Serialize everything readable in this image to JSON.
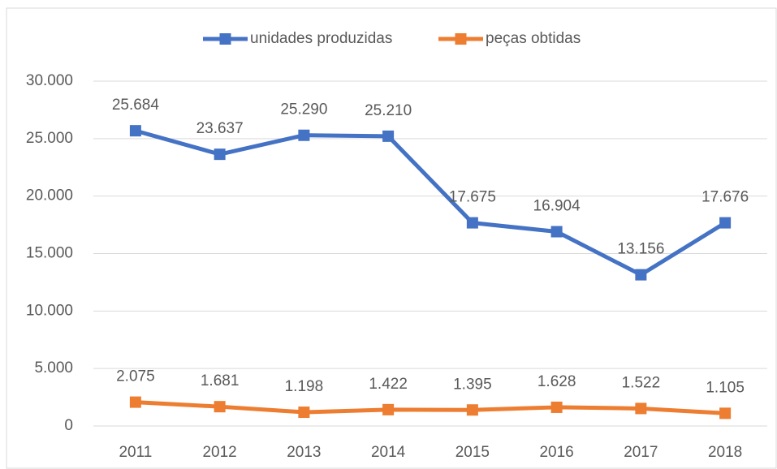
{
  "chart_data": {
    "type": "line",
    "categories": [
      "2011",
      "2012",
      "2013",
      "2014",
      "2015",
      "2016",
      "2017",
      "2018"
    ],
    "series": [
      {
        "name": "unidades produzidas",
        "color": "#4472c4",
        "values": [
          25684,
          23637,
          25290,
          25210,
          17675,
          16904,
          13156,
          17676
        ],
        "value_labels": [
          "25.684",
          "23.637",
          "25.290",
          "25.210",
          "17.675",
          "16.904",
          "13.156",
          "17.676"
        ]
      },
      {
        "name": "peças obtidas",
        "color": "#ed7d31",
        "values": [
          2075,
          1681,
          1198,
          1422,
          1395,
          1628,
          1522,
          1105
        ],
        "value_labels": [
          "2.075",
          "1.681",
          "1.198",
          "1.422",
          "1.395",
          "1.628",
          "1.522",
          "1.105"
        ]
      }
    ],
    "ylim": [
      0,
      30000
    ],
    "yticks": [
      0,
      {
        "value": 5000,
        "label": "5.000"
      },
      {
        "value": 10000,
        "label": "10.000"
      },
      {
        "value": 15000,
        "label": "15.000"
      },
      {
        "value": 20000,
        "label": "20.000"
      },
      {
        "value": 25000,
        "label": "25.000"
      },
      {
        "value": 30000,
        "label": "30.000"
      }
    ],
    "grid": true,
    "legend": "top"
  }
}
